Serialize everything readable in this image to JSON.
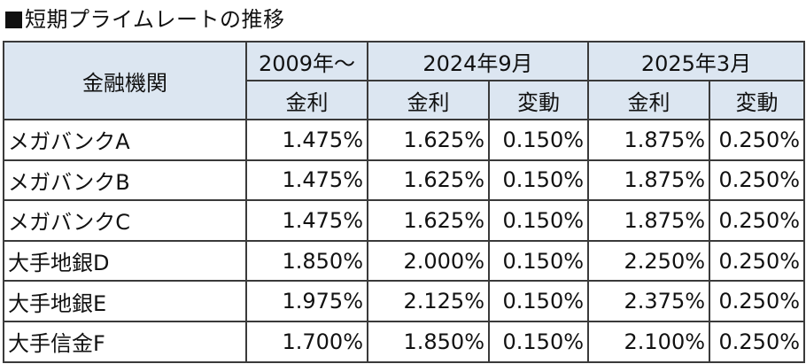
{
  "title": "短期プライムレートの推移",
  "header": {
    "institution": "金融機関",
    "period_2009": "2009年～",
    "period_2024_09": "2024年9月",
    "period_2025_03": "2025年3月",
    "rate": "金利",
    "change": "変動"
  },
  "rows": [
    {
      "name": "メガバンクA",
      "r2009": "1.475%",
      "r2024": "1.625%",
      "c2024": "0.150%",
      "r2025": "1.875%",
      "c2025": "0.250%"
    },
    {
      "name": "メガバンクB",
      "r2009": "1.475%",
      "r2024": "1.625%",
      "c2024": "0.150%",
      "r2025": "1.875%",
      "c2025": "0.250%"
    },
    {
      "name": "メガバンクC",
      "r2009": "1.475%",
      "r2024": "1.625%",
      "c2024": "0.150%",
      "r2025": "1.875%",
      "c2025": "0.250%"
    },
    {
      "name": "大手地銀D",
      "r2009": "1.850%",
      "r2024": "2.000%",
      "c2024": "0.150%",
      "r2025": "2.250%",
      "c2025": "0.250%"
    },
    {
      "name": "大手地銀E",
      "r2009": "1.975%",
      "r2024": "2.125%",
      "c2024": "0.150%",
      "r2025": "2.375%",
      "c2025": "0.250%"
    },
    {
      "name": "大手信金F",
      "r2009": "1.700%",
      "r2024": "1.850%",
      "c2024": "0.150%",
      "r2025": "2.100%",
      "c2025": "0.250%"
    }
  ]
}
